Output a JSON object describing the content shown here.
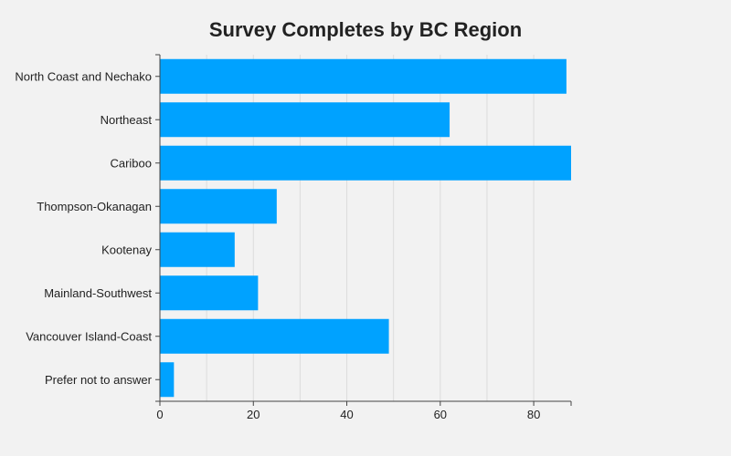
{
  "chart_data": {
    "type": "bar",
    "orientation": "horizontal",
    "title": "Survey Completes by BC Region",
    "categories": [
      "North Coast and Nechako",
      "Northeast",
      "Cariboo",
      "Thompson-Okanagan",
      "Kootenay",
      "Mainland-Southwest",
      "Vancouver Island-Coast",
      "Prefer not to answer"
    ],
    "values": [
      87,
      62,
      88,
      25,
      16,
      21,
      49,
      3
    ],
    "xlabel": "",
    "ylabel": "",
    "xlim": [
      0,
      88
    ],
    "xticks": [
      0,
      20,
      40,
      60,
      80
    ],
    "grid": "vertical",
    "legend": "none",
    "bar_color": "#00a2ff"
  }
}
